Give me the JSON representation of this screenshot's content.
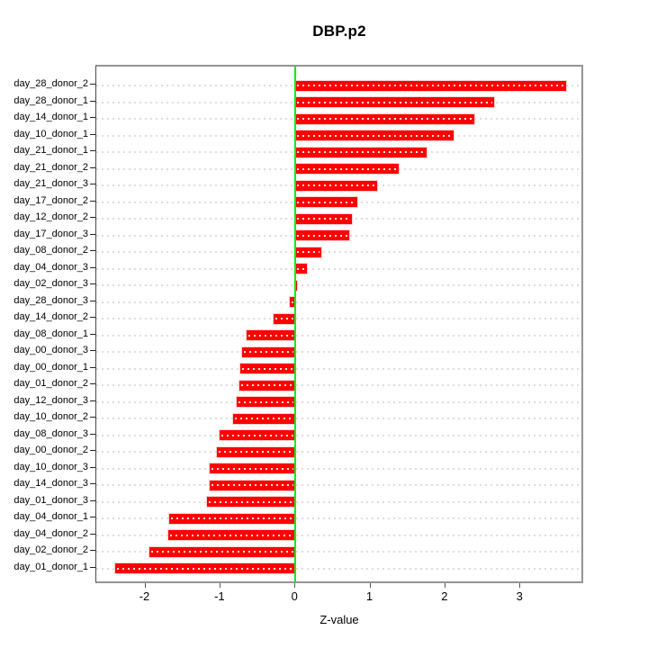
{
  "chart_data": {
    "type": "bar",
    "orientation": "horizontal",
    "title": "DBP.p2",
    "xlabel": "Z-value",
    "ylabel": "",
    "x_ticks": [
      -2,
      -1,
      0,
      1,
      2,
      3
    ],
    "xlim": [
      -2.65,
      3.85
    ],
    "grid": "dotted horizontal line per category",
    "legend": "none",
    "bar_color": "#ff0000",
    "zero_line_color": "#0aee0a",
    "categories": [
      "day_28_donor_2",
      "day_28_donor_1",
      "day_14_donor_1",
      "day_10_donor_1",
      "day_21_donor_1",
      "day_21_donor_2",
      "day_21_donor_3",
      "day_17_donor_2",
      "day_12_donor_2",
      "day_17_donor_3",
      "day_08_donor_2",
      "day_04_donor_3",
      "day_02_donor_3",
      "day_28_donor_3",
      "day_14_donor_2",
      "day_08_donor_1",
      "day_00_donor_3",
      "day_00_donor_1",
      "day_01_donor_2",
      "day_12_donor_3",
      "day_10_donor_2",
      "day_08_donor_3",
      "day_00_donor_2",
      "day_10_donor_3",
      "day_14_donor_3",
      "day_01_donor_3",
      "day_04_donor_1",
      "day_04_donor_2",
      "day_02_donor_2",
      "day_01_donor_1"
    ],
    "values": [
      3.61,
      2.66,
      2.39,
      2.12,
      1.76,
      1.38,
      1.1,
      0.83,
      0.76,
      0.72,
      0.35,
      0.16,
      0.03,
      -0.07,
      -0.28,
      -0.65,
      -0.7,
      -0.73,
      -0.74,
      -0.78,
      -0.82,
      -1.0,
      -1.04,
      -1.14,
      -1.14,
      -1.17,
      -1.68,
      -1.69,
      -1.94,
      -2.4
    ]
  }
}
